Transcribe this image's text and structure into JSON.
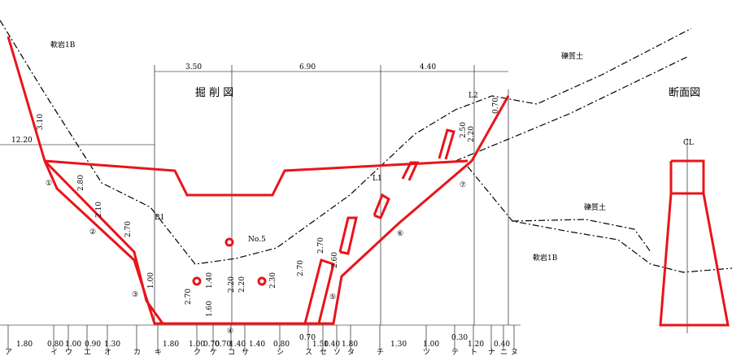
{
  "drawing": {
    "title": "掘 削 図",
    "section_title": "断面図",
    "top_dims": [
      "3.50",
      "6.90",
      "4.40"
    ],
    "left_dim": "12.20",
    "soil_labels": [
      "軟岩1B",
      "礫質土",
      "礫質土",
      "軟岩1B"
    ],
    "point_labels": [
      "No.5",
      "L1",
      "L2",
      "B1",
      "CL"
    ],
    "markers": [
      "①",
      "②",
      "③",
      "④",
      "⑤",
      "⑥",
      "⑦"
    ],
    "vertical_dims": [
      "3.10",
      "2.80",
      "2.10",
      "2.70",
      "1.00",
      "2.70",
      "1.40",
      "1.60",
      "2.20",
      "2.20",
      "2.30",
      "2.70",
      "2.70",
      "2.60",
      "2.50",
      "2.20",
      "0.70"
    ],
    "bottom_dims": [
      "1.80",
      "0.80",
      "1.00",
      "0.90",
      "1.30",
      "1.80",
      "1.00",
      "0.70",
      "0.70",
      "1.40",
      "1.40",
      "0.80",
      "0.70",
      "1.50",
      "1.40",
      "1.80",
      "1.30",
      "1.00",
      "0.30",
      "1.20",
      "0.40"
    ],
    "stations": [
      "ア",
      "イ",
      "ウ",
      "エ",
      "オ",
      "カ",
      "キ",
      "ク",
      "ケ",
      "コ",
      "サ",
      "シ",
      "ス",
      "セ",
      "ソ",
      "タ",
      "チ",
      "ツ",
      "テ",
      "ト",
      "ナ",
      "ニ",
      "ヌ"
    ]
  }
}
